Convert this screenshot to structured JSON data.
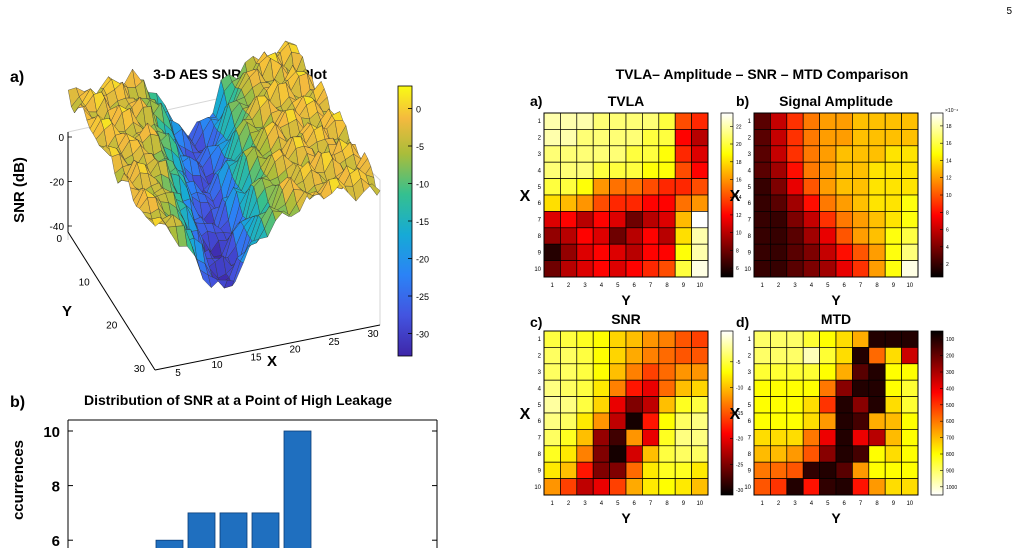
{
  "page_number": "5",
  "colors": {
    "bar": "#1f6fbf",
    "grid": "#000000",
    "mesh": "#333333"
  },
  "chart_data": [
    {
      "id": "surface",
      "type": "surface",
      "panel": "a)",
      "title": "3-D AES SNR Surface Plot",
      "xlabel": "X",
      "ylabel": "Y",
      "zlabel": "SNR (dB)",
      "x_ticks": [
        "5",
        "10",
        "15",
        "20",
        "25",
        "30"
      ],
      "y_ticks": [
        "0",
        "10",
        "20",
        "30"
      ],
      "z_ticks": [
        "0",
        "-20",
        "-40"
      ],
      "colorbar_ticks": [
        "0",
        "-5",
        "-10",
        "-15",
        "-20",
        "-25",
        "-30"
      ],
      "zlim": [
        -40,
        0
      ],
      "clim": [
        -33,
        3
      ],
      "colormap": "parula"
    },
    {
      "id": "histogram",
      "type": "bar",
      "panel": "b)",
      "title": "Distribution of SNR at a Point of High Leakage",
      "ylabel": "ccurrences",
      "y_ticks": [
        "10",
        "8",
        "6"
      ],
      "ylim": [
        5.5,
        10.5
      ],
      "values": [
        6,
        7,
        7,
        7,
        10
      ]
    },
    {
      "id": "heatmaps",
      "type": "heatmap",
      "title": "TVLA– Amplitude – SNR – MTD Comparison",
      "x_ticks": [
        "1",
        "2",
        "3",
        "4",
        "5",
        "6",
        "7",
        "8",
        "9",
        "10"
      ],
      "y_ticks": [
        "1",
        "2",
        "3",
        "4",
        "5",
        "6",
        "7",
        "8",
        "9",
        "10"
      ],
      "colormap": "hot",
      "panels": [
        {
          "id": "tvla",
          "panel": "a)",
          "title": "TVLA",
          "xlabel": "Y",
          "ylabel": "X",
          "colorbar_ticks": [
            "22",
            "20",
            "18",
            "16",
            "14",
            "12",
            "10",
            "8",
            "6"
          ],
          "clim": [
            5,
            23.5
          ],
          "values": [
            [
              22,
              22,
              22,
              21,
              21,
              21,
              21,
              20,
              14,
              13
            ],
            [
              22,
              22,
              21,
              21,
              21,
              21,
              20,
              20,
              12,
              10
            ],
            [
              21,
              21,
              21,
              21,
              21,
              20,
              20,
              19,
              13,
              11
            ],
            [
              21,
              21,
              21,
              20,
              20,
              20,
              19,
              19,
              14,
              12
            ],
            [
              20,
              20,
              19,
              16,
              15,
              15,
              14,
              13,
              13,
              14
            ],
            [
              18,
              17,
              16,
              14,
              13,
              13,
              12,
              12,
              15,
              16
            ],
            [
              11,
              12,
              10,
              12,
              11,
              8,
              10,
              11,
              17,
              24
            ],
            [
              9,
              10,
              12,
              11,
              8,
              10,
              12,
              10,
              18,
              22
            ],
            [
              6,
              9,
              11,
              12,
              11,
              10,
              12,
              12,
              19,
              22
            ],
            [
              8,
              10,
              11,
              12,
              11,
              12,
              13,
              14,
              20,
              23
            ]
          ]
        },
        {
          "id": "amplitude",
          "panel": "b)",
          "title": "Signal Amplitude",
          "xlabel": "Y",
          "ylabel": "X",
          "colorbar_exponent": "×10⁻⁴",
          "colorbar_ticks": [
            "18",
            "16",
            "14",
            "12",
            "10",
            "8",
            "6",
            "4",
            "2"
          ],
          "clim": [
            0.5,
            19.5
          ],
          "values": [
            [
              3,
              6,
              9,
              11,
              12,
              12,
              13,
              13,
              13,
              13
            ],
            [
              3,
              6,
              9,
              11,
              12,
              12,
              13,
              13,
              13,
              13
            ],
            [
              3,
              6,
              9,
              11,
              12,
              13,
              13,
              13,
              14,
              14
            ],
            [
              3,
              5,
              8,
              11,
              12,
              13,
              13,
              14,
              14,
              14
            ],
            [
              2,
              4,
              7,
              10,
              12,
              13,
              13,
              14,
              14,
              14
            ],
            [
              2,
              3,
              5,
              8,
              11,
              12,
              13,
              14,
              14,
              15
            ],
            [
              2,
              2,
              4,
              6,
              9,
              11,
              12,
              13,
              14,
              15
            ],
            [
              2,
              2,
              3,
              5,
              7,
              10,
              12,
              13,
              15,
              16
            ],
            [
              2,
              2,
              3,
              4,
              6,
              8,
              10,
              12,
              15,
              17
            ],
            [
              2,
              2,
              3,
              4,
              5,
              7,
              9,
              12,
              15,
              19
            ]
          ]
        },
        {
          "id": "snr",
          "panel": "c)",
          "title": "SNR",
          "xlabel": "Y",
          "ylabel": "X",
          "colorbar_ticks": [
            "-5",
            "-10",
            "-15",
            "-20",
            "-25",
            "-30"
          ],
          "clim": [
            -31,
            1
          ],
          "values": [
            [
              -5,
              -5,
              -6,
              -7,
              -9,
              -10,
              -12,
              -13,
              -15,
              -16
            ],
            [
              -4,
              -4,
              -5,
              -7,
              -9,
              -11,
              -13,
              -14,
              -15,
              -15
            ],
            [
              -4,
              -4,
              -5,
              -7,
              -10,
              -13,
              -16,
              -14,
              -12,
              -12
            ],
            [
              -3,
              -4,
              -5,
              -8,
              -13,
              -18,
              -20,
              -14,
              -10,
              -9
            ],
            [
              -2,
              -3,
              -5,
              -9,
              -20,
              -25,
              -22,
              -10,
              -6,
              -5
            ],
            [
              -3,
              -4,
              -8,
              -12,
              -22,
              -30,
              -18,
              -7,
              -4,
              -3
            ],
            [
              -4,
              -6,
              -10,
              -24,
              -28,
              -12,
              -20,
              -6,
              -3,
              -3
            ],
            [
              -6,
              -8,
              -13,
              -25,
              -30,
              -21,
              -10,
              -5,
              -4,
              -4
            ],
            [
              -8,
              -10,
              -18,
              -25,
              -25,
              -14,
              -8,
              -6,
              -6,
              -8
            ],
            [
              -12,
              -16,
              -22,
              -20,
              -16,
              -11,
              -8,
              -7,
              -8,
              -10
            ]
          ]
        },
        {
          "id": "mtd",
          "panel": "d)",
          "title": "MTD",
          "xlabel": "Y",
          "ylabel": "X",
          "colorbar_ticks": [
            "100",
            "200",
            "300",
            "400",
            "500",
            "600",
            "700",
            "800",
            "900",
            "1000"
          ],
          "clim": [
            50,
            1050
          ],
          "values": [
            [
              200,
              200,
              200,
              250,
              300,
              350,
              420,
              1000,
              1000,
              1000
            ],
            [
              200,
              200,
              200,
              120,
              250,
              350,
              1000,
              520,
              350,
              750
            ],
            [
              250,
              250,
              250,
              250,
              300,
              420,
              920,
              1000,
              300,
              300
            ],
            [
              300,
              300,
              300,
              300,
              500,
              850,
              1000,
              1000,
              300,
              250
            ],
            [
              300,
              300,
              300,
              350,
              600,
              1000,
              850,
              1000,
              350,
              250
            ],
            [
              300,
              300,
              300,
              350,
              450,
              1000,
              950,
              420,
              400,
              300
            ],
            [
              350,
              350,
              350,
              500,
              700,
              1000,
              700,
              780,
              400,
              300
            ],
            [
              400,
              400,
              450,
              550,
              850,
              1000,
              950,
              300,
              350,
              300
            ],
            [
              500,
              520,
              550,
              980,
              1000,
              920,
              450,
              300,
              300,
              300
            ],
            [
              550,
              600,
              1000,
              650,
              980,
              1000,
              650,
              450,
              350,
              350
            ]
          ]
        }
      ]
    }
  ]
}
